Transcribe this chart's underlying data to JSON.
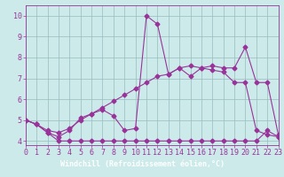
{
  "xlabel": "Windchill (Refroidissement éolien,°C)",
  "xlim": [
    0,
    23
  ],
  "ylim": [
    3.8,
    10.5
  ],
  "yticks": [
    4,
    5,
    6,
    7,
    8,
    9,
    10
  ],
  "xticks": [
    0,
    1,
    2,
    3,
    4,
    5,
    6,
    7,
    8,
    9,
    10,
    11,
    12,
    13,
    14,
    15,
    16,
    17,
    18,
    19,
    20,
    21,
    22,
    23
  ],
  "bg_color": "#cceaea",
  "line_color": "#993399",
  "grid_color": "#99bbbb",
  "xlabel_bg": "#6633aa",
  "xlabel_fg": "#ffffff",
  "line1_x": [
    0,
    1,
    2,
    3,
    4,
    5,
    6,
    7,
    8,
    9,
    10,
    11,
    12,
    13,
    14,
    15,
    16,
    17,
    18,
    19,
    20,
    21,
    22,
    23
  ],
  "line1_y": [
    5.0,
    4.8,
    4.4,
    4.0,
    4.0,
    4.0,
    4.0,
    4.0,
    4.0,
    4.0,
    4.0,
    4.0,
    4.0,
    4.0,
    4.0,
    4.0,
    4.0,
    4.0,
    4.0,
    4.0,
    4.0,
    4.0,
    4.5,
    4.2
  ],
  "line2_x": [
    0,
    1,
    2,
    3,
    4,
    5,
    6,
    7,
    8,
    9,
    10,
    11,
    12,
    13,
    14,
    15,
    16,
    17,
    18,
    19,
    20,
    21,
    22,
    23
  ],
  "line2_y": [
    5.0,
    4.8,
    4.4,
    4.2,
    4.5,
    5.1,
    5.3,
    5.5,
    5.2,
    4.5,
    4.6,
    10.0,
    9.6,
    7.2,
    7.5,
    7.1,
    7.5,
    7.4,
    7.3,
    6.8,
    6.8,
    4.5,
    4.3,
    4.2
  ],
  "line3_x": [
    0,
    1,
    2,
    3,
    4,
    5,
    6,
    7,
    8,
    9,
    10,
    11,
    12,
    13,
    14,
    15,
    16,
    17,
    18,
    19,
    20,
    21,
    22,
    23
  ],
  "line3_y": [
    5.0,
    4.8,
    4.5,
    4.4,
    4.6,
    5.0,
    5.3,
    5.6,
    5.9,
    6.2,
    6.5,
    6.8,
    7.1,
    7.2,
    7.5,
    7.6,
    7.5,
    7.6,
    7.5,
    7.5,
    8.5,
    6.8,
    6.8,
    4.3
  ],
  "tick_fontsize": 6,
  "xlabel_fontsize": 6
}
